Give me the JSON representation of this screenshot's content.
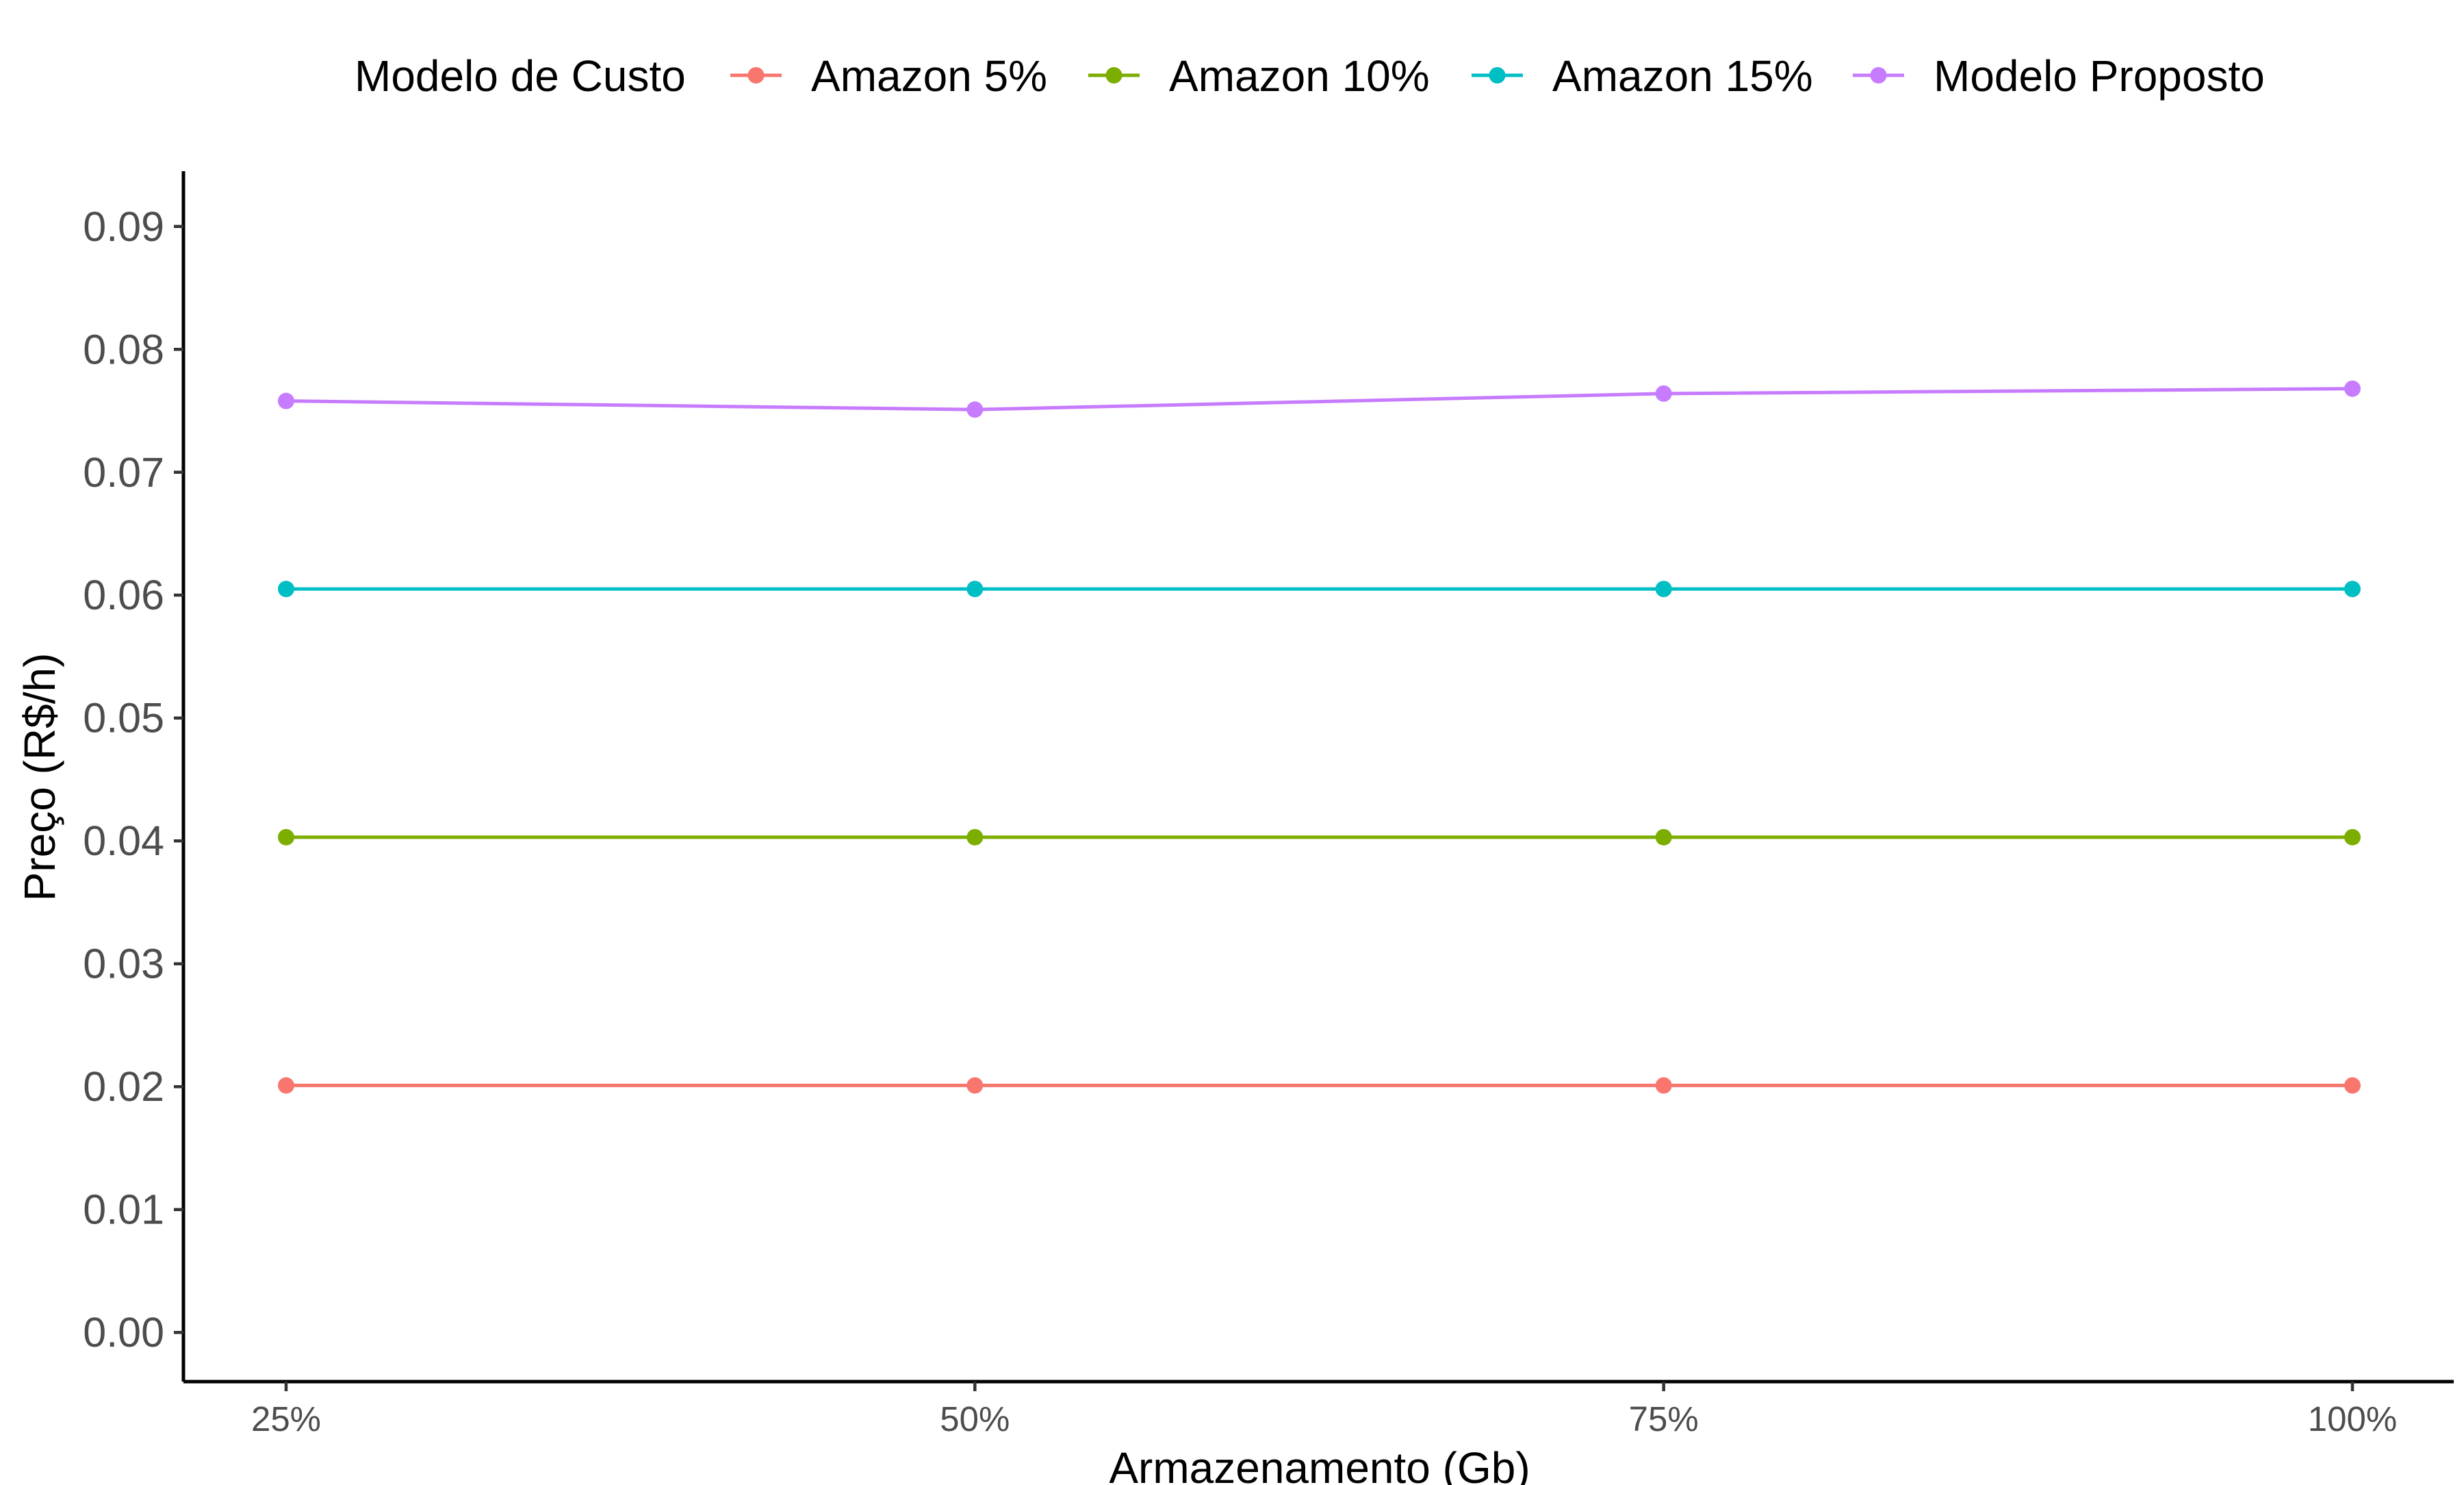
{
  "chart_data": {
    "type": "line",
    "title": "",
    "xlabel": "Armazenamento (Gb)",
    "ylabel": "Preço (R$/h)",
    "categories": [
      "25%",
      "50%",
      "75%",
      "100%"
    ],
    "ylim": [
      -0.004,
      0.0945
    ],
    "yticks": [
      0.0,
      0.01,
      0.02,
      0.03,
      0.04,
      0.05,
      0.06,
      0.07,
      0.08,
      0.09
    ],
    "ytick_labels": [
      "0.00",
      "0.01",
      "0.02",
      "0.03",
      "0.04",
      "0.05",
      "0.06",
      "0.07",
      "0.08",
      "0.09"
    ],
    "grid": false,
    "legend": {
      "title": "Modelo de Custo",
      "position": "top"
    },
    "series": [
      {
        "name": "Amazon 5%",
        "color": "#F8766D",
        "values": [
          0.0201,
          0.0201,
          0.0201,
          0.0201
        ]
      },
      {
        "name": "Amazon 10%",
        "color": "#7CAE00",
        "values": [
          0.0403,
          0.0403,
          0.0403,
          0.0403
        ]
      },
      {
        "name": "Amazon 15%",
        "color": "#00BFC4",
        "values": [
          0.0605,
          0.0605,
          0.0605,
          0.0605
        ]
      },
      {
        "name": "Modelo Proposto",
        "color": "#C77CFF",
        "values": [
          0.0758,
          0.0751,
          0.0764,
          0.0768
        ]
      }
    ]
  }
}
